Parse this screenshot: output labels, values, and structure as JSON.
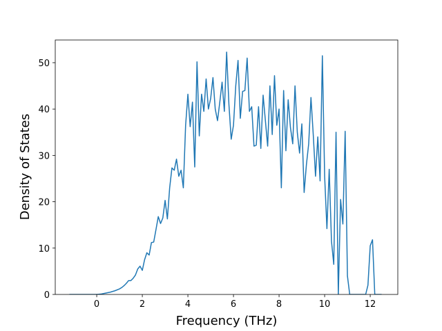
{
  "chart_data": {
    "type": "line",
    "xlabel": "Frequency (THz)",
    "ylabel": "Density of States",
    "x": [
      -1.2,
      -0.8,
      -0.4,
      0,
      0.2,
      0.4,
      0.6,
      0.8,
      1.0,
      1.1,
      1.2,
      1.3,
      1.4,
      1.5,
      1.6,
      1.7,
      1.8,
      1.9,
      2.0,
      2.1,
      2.2,
      2.3,
      2.4,
      2.5,
      2.6,
      2.7,
      2.8,
      2.9,
      3.0,
      3.1,
      3.2,
      3.3,
      3.4,
      3.5,
      3.6,
      3.7,
      3.8,
      3.9,
      4.0,
      4.1,
      4.2,
      4.3,
      4.4,
      4.5,
      4.6,
      4.7,
      4.8,
      4.9,
      5.0,
      5.1,
      5.2,
      5.3,
      5.4,
      5.5,
      5.6,
      5.7,
      5.8,
      5.9,
      6.0,
      6.1,
      6.2,
      6.3,
      6.4,
      6.5,
      6.6,
      6.7,
      6.8,
      6.9,
      7.0,
      7.1,
      7.2,
      7.3,
      7.4,
      7.5,
      7.6,
      7.7,
      7.8,
      7.9,
      8.0,
      8.1,
      8.2,
      8.3,
      8.4,
      8.5,
      8.6,
      8.7,
      8.8,
      8.9,
      9.0,
      9.1,
      9.2,
      9.3,
      9.4,
      9.5,
      9.6,
      9.7,
      9.8,
      9.9,
      10.0,
      10.1,
      10.2,
      10.3,
      10.4,
      10.5,
      10.6,
      10.7,
      10.8,
      10.9,
      11.0,
      11.1,
      11.2,
      11.3,
      11.4,
      11.5,
      11.6,
      11.7,
      11.8,
      11.9,
      12.0,
      12.1,
      12.2,
      12.3,
      12.4,
      12.5
    ],
    "series": [
      {
        "color": "#1f77b4",
        "values": [
          0,
          0,
          0,
          0,
          0.1,
          0.3,
          0.5,
          0.8,
          1.2,
          1.5,
          1.9,
          2.4,
          3.0,
          3.0,
          3.5,
          4.2,
          5.5,
          6.1,
          5.2,
          7.5,
          9,
          8.5,
          11.2,
          11.3,
          14,
          16.8,
          15.3,
          16.5,
          20.3,
          16.3,
          23,
          27.3,
          26.8,
          29.2,
          25.5,
          26.8,
          23,
          36.5,
          43.2,
          36.2,
          41.5,
          27.5,
          50.2,
          34.2,
          43.2,
          39.5,
          46.5,
          40,
          42.3,
          46.8,
          40,
          37.5,
          41.5,
          45.8,
          39.5,
          52.3,
          41,
          33.5,
          36.5,
          45,
          50.5,
          38,
          43.8,
          44,
          51,
          39.5,
          40.5,
          32,
          32.2,
          40.5,
          31.5,
          43,
          37.5,
          32,
          45,
          34.5,
          47.2,
          36.5,
          40,
          23,
          44,
          31,
          42,
          36,
          32.5,
          45,
          35,
          30.5,
          36.8,
          22,
          28,
          32.5,
          42.5,
          34.5,
          25.5,
          34,
          24.5,
          51.5,
          25.5,
          14.2,
          27,
          11.5,
          6.5,
          35,
          0,
          20.5,
          15.2,
          35.2,
          4,
          0,
          0,
          0,
          0,
          0,
          0,
          0,
          0,
          2,
          10.5,
          11.8,
          0,
          0,
          0,
          0
        ]
      }
    ],
    "xlim": [
      -1.82,
      13.21
    ],
    "ylim": [
      0,
      54.9
    ],
    "xticks": [
      0,
      2,
      4,
      6,
      8,
      10,
      12
    ],
    "yticks": [
      0,
      10,
      20,
      30,
      40,
      50
    ]
  }
}
